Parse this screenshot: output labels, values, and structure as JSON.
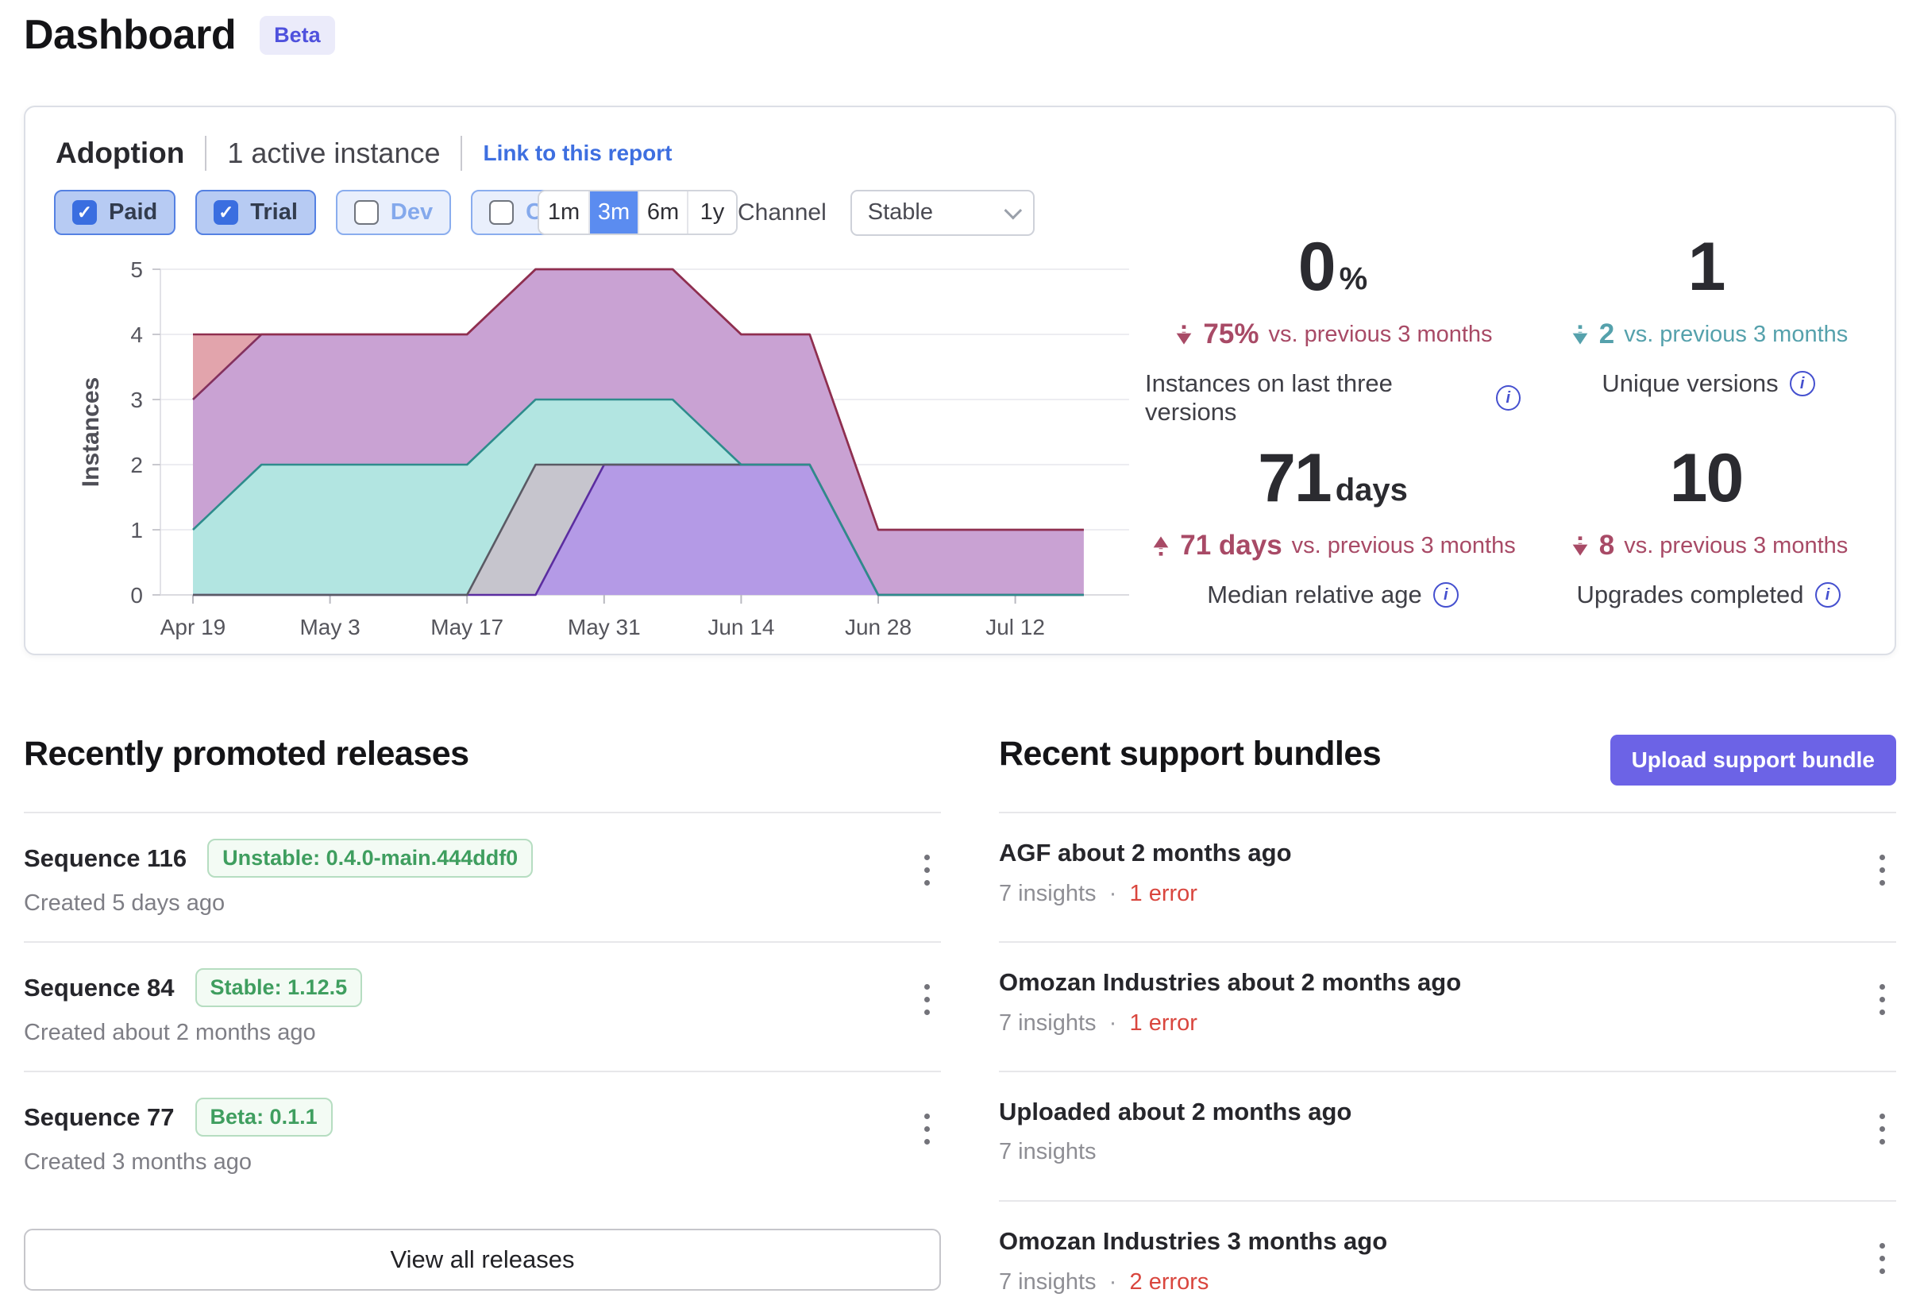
{
  "page": {
    "title": "Dashboard",
    "beta": "Beta"
  },
  "colors": {
    "accent_blue": "#3a6ee0",
    "selected_range_blue": "#5b8cf0",
    "accent_purple": "#6c63e6",
    "rose": "#a84a66",
    "teal": "#55a1ac",
    "error_red": "#d9463e",
    "success_green": "#3f9e5f",
    "link_blue": "#3e6fe0",
    "info_icon_blue": "#4550cf"
  },
  "adoption": {
    "title": "Adoption",
    "active_count": "1 active instance",
    "report_link": "Link to this report",
    "filters": [
      {
        "label": "Paid",
        "checked": true,
        "pill_class": "filter-pill checked",
        "box_class": "checkbox checked"
      },
      {
        "label": "Trial",
        "checked": true,
        "pill_class": "filter-pill checked",
        "box_class": "checkbox checked"
      },
      {
        "label": "Dev",
        "checked": false,
        "pill_class": "filter-pill",
        "box_class": "checkbox"
      },
      {
        "label": "Community",
        "checked": false,
        "pill_class": "filter-pill",
        "box_class": "checkbox"
      }
    ],
    "ranges": [
      {
        "label": "1m",
        "class": "range-btn"
      },
      {
        "label": "3m",
        "class": "range-btn selected"
      },
      {
        "label": "6m",
        "class": "range-btn"
      },
      {
        "label": "1y",
        "class": "range-btn"
      }
    ],
    "channel_label": "Channel",
    "channel_value": "Stable",
    "stats": [
      {
        "value": "0",
        "unit": "%",
        "delta": "75%",
        "delta_suffix": "vs. previous 3 months",
        "delta_class": "delta rose",
        "arrow_class": "trend-arrow down",
        "label": "Instances on last three versions"
      },
      {
        "value": "1",
        "unit": "",
        "delta": "2",
        "delta_suffix": "vs. previous 3 months",
        "delta_class": "delta teal",
        "arrow_class": "trend-arrow down",
        "label": "Unique versions"
      },
      {
        "value": "71",
        "unit": "days",
        "delta": "71 days",
        "delta_suffix": "vs. previous 3 months",
        "delta_class": "delta rose",
        "arrow_class": "trend-arrow up",
        "label": "Median relative age"
      },
      {
        "value": "10",
        "unit": "",
        "delta": "8",
        "delta_suffix": "vs. previous 3 months",
        "delta_class": "delta rose",
        "arrow_class": "trend-arrow down",
        "label": "Upgrades completed"
      }
    ]
  },
  "chart_data": {
    "type": "area",
    "stacked": true,
    "title": "",
    "xlabel": "",
    "ylabel": "Instances",
    "ylim": [
      0,
      5
    ],
    "yticks": [
      0,
      1,
      2,
      3,
      4,
      5
    ],
    "grid": "horizontal",
    "legend": "none",
    "x_dates": [
      "Apr 19",
      "Apr 26",
      "May 3",
      "May 10",
      "May 17",
      "May 24",
      "May 31",
      "Jun 7",
      "Jun 14",
      "Jun 21",
      "Jun 28",
      "Jul 5",
      "Jul 12",
      "Jul 19"
    ],
    "xtick_labels": [
      "Apr 19",
      "May 3",
      "May 17",
      "May 31",
      "Jun 14",
      "Jun 28",
      "Jul 12"
    ],
    "series": [
      {
        "name": "purple-version",
        "fill": "#b49ae6",
        "stroke": "#5b2da0",
        "values": [
          0,
          0,
          0,
          0,
          0,
          0,
          2,
          2,
          2,
          2,
          0,
          0,
          0,
          0
        ]
      },
      {
        "name": "gray-version",
        "fill": "#c6c5cd",
        "stroke": "#5a5a64",
        "values": [
          0,
          0,
          0,
          0,
          0,
          2,
          0,
          0,
          0,
          0,
          0,
          0,
          0,
          0
        ]
      },
      {
        "name": "teal-version",
        "fill": "#b2e5e1",
        "stroke": "#2e8c8c",
        "values": [
          1,
          2,
          2,
          2,
          2,
          1,
          1,
          1,
          0,
          0,
          0,
          0,
          0,
          0
        ]
      },
      {
        "name": "mauve-version",
        "fill": "#c9a2d3",
        "stroke": "#83315e",
        "values": [
          2,
          2,
          2,
          2,
          2,
          2,
          2,
          2,
          2,
          2,
          1,
          1,
          1,
          1
        ]
      },
      {
        "name": "salmon-version",
        "fill": "#e2a4ac",
        "stroke": "#8f2f4f",
        "values": [
          1,
          0,
          0,
          0,
          0,
          0,
          0,
          0,
          0,
          0,
          0,
          0,
          0,
          0
        ]
      }
    ]
  },
  "releases": {
    "heading": "Recently promoted releases",
    "view_all": "View all releases",
    "items": [
      {
        "title": "Sequence 116",
        "badge": "Unstable: 0.4.0-main.444ddf0",
        "created": "Created 5 days ago"
      },
      {
        "title": "Sequence 84",
        "badge": "Stable: 1.12.5",
        "created": "Created about 2 months ago"
      },
      {
        "title": "Sequence 77",
        "badge": "Beta: 0.1.1",
        "created": "Created 3 months ago"
      }
    ]
  },
  "bundles": {
    "heading": "Recent support bundles",
    "upload_button": "Upload support bundle",
    "items": [
      {
        "title": "AGF about 2 months ago",
        "insights": "7 insights",
        "error": "1 error",
        "sep_class": "meta-dot",
        "error_class": "bundle-error"
      },
      {
        "title": "Omozan Industries about 2 months ago",
        "insights": "7 insights",
        "error": "1 error",
        "sep_class": "meta-dot",
        "error_class": "bundle-error"
      },
      {
        "title": "Uploaded about 2 months ago",
        "insights": "7 insights",
        "error": "",
        "sep_class": "meta-dot hidden",
        "error_class": "bundle-error hidden"
      },
      {
        "title": "Omozan Industries 3 months ago",
        "insights": "7 insights",
        "error": "2 errors",
        "sep_class": "meta-dot",
        "error_class": "bundle-error"
      }
    ]
  }
}
